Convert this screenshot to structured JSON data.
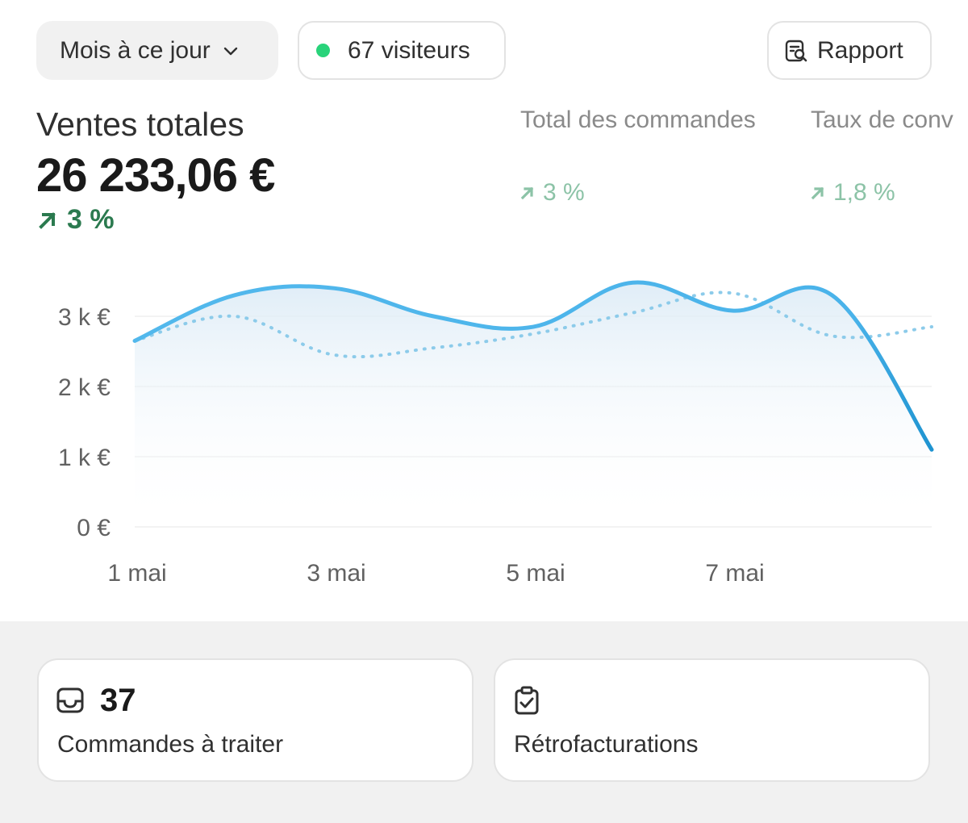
{
  "toolbar": {
    "date_range": "Mois à ce jour",
    "visitors": "67 visiteurs",
    "report_label": "Rapport"
  },
  "kpis": {
    "total_sales": {
      "title": "Ventes totales",
      "value": "26 233,06 €",
      "change": "3 %"
    },
    "total_orders": {
      "title": "Total des commandes",
      "change": "3 %"
    },
    "conversion_rate": {
      "title": "Taux de conv",
      "change": "1,8 %"
    }
  },
  "chart_data": {
    "type": "line",
    "x_labels": [
      "1 mai",
      "3 mai",
      "5 mai",
      "7 mai"
    ],
    "x": [
      "1 mai",
      "2 mai",
      "3 mai",
      "4 mai",
      "5 mai",
      "6 mai",
      "7 mai",
      "8 mai",
      "9 mai"
    ],
    "y_ticks": [
      "0 €",
      "1 k €",
      "2 k €",
      "3 k €"
    ],
    "ylim": [
      0,
      3500
    ],
    "series": [
      {
        "style": "solid",
        "color": "#4ab3ea",
        "values": [
          2650,
          3300,
          3400,
          3000,
          2850,
          3480,
          3080,
          3300,
          1100
        ]
      },
      {
        "style": "dotted",
        "color": "#8ccbea",
        "values": [
          2650,
          3000,
          2450,
          2550,
          2750,
          3050,
          3330,
          2720,
          2850
        ]
      }
    ],
    "grid": true
  },
  "cards": {
    "todo": {
      "count": "37",
      "label": "Commandes à traiter"
    },
    "retro": {
      "label": "Rétrofacturations"
    }
  },
  "colors": {
    "accent_line": "#4ab3ea",
    "positive": "#2b7a4f",
    "positive_muted": "#8cc3a7",
    "visitor_dot": "#29d37a"
  },
  "icons": {
    "date_pill": "chevron-down-icon",
    "visitors_pill": "online-dot-icon",
    "report": "report-search-icon",
    "todo_card": "inbox-icon",
    "retro_card": "clipboard-check-icon"
  }
}
